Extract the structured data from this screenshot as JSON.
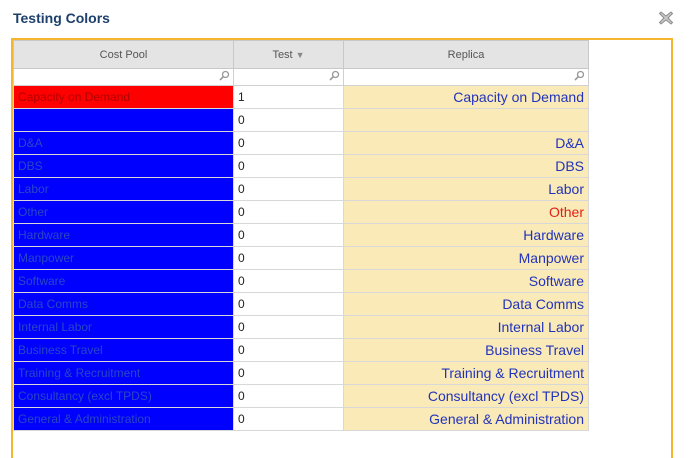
{
  "dialog": {
    "title": "Testing Colors",
    "close_icon": "close-icon"
  },
  "grid": {
    "columns": [
      {
        "label": "Cost Pool",
        "sort": ""
      },
      {
        "label": "Test",
        "sort": "descending"
      },
      {
        "label": "Replica",
        "sort": ""
      }
    ],
    "filters": [
      "",
      "",
      ""
    ],
    "rows": [
      {
        "cost_pool": "Capacity on Demand",
        "test": "1",
        "replica": "Capacity on Demand",
        "pool_bg": "#ff0000",
        "replica_color": "#2233bb"
      },
      {
        "cost_pool": "",
        "test": "0",
        "replica": "",
        "pool_bg": "#0000ff",
        "replica_color": "#2233bb"
      },
      {
        "cost_pool": "D&A",
        "test": "0",
        "replica": "D&A",
        "pool_bg": "#0000ff",
        "replica_color": "#2233bb"
      },
      {
        "cost_pool": "DBS",
        "test": "0",
        "replica": "DBS",
        "pool_bg": "#0000ff",
        "replica_color": "#2233bb"
      },
      {
        "cost_pool": "Labor",
        "test": "0",
        "replica": "Labor",
        "pool_bg": "#0000ff",
        "replica_color": "#2233bb"
      },
      {
        "cost_pool": "Other",
        "test": "0",
        "replica": "Other",
        "pool_bg": "#0000ff",
        "replica_color": "#e0201a"
      },
      {
        "cost_pool": "Hardware",
        "test": "0",
        "replica": "Hardware",
        "pool_bg": "#0000ff",
        "replica_color": "#2233bb"
      },
      {
        "cost_pool": "Manpower",
        "test": "0",
        "replica": "Manpower",
        "pool_bg": "#0000ff",
        "replica_color": "#2233bb"
      },
      {
        "cost_pool": "Software",
        "test": "0",
        "replica": "Software",
        "pool_bg": "#0000ff",
        "replica_color": "#2233bb"
      },
      {
        "cost_pool": "Data Comms",
        "test": "0",
        "replica": "Data Comms",
        "pool_bg": "#0000ff",
        "replica_color": "#2233bb"
      },
      {
        "cost_pool": "Internal Labor",
        "test": "0",
        "replica": "Internal Labor",
        "pool_bg": "#0000ff",
        "replica_color": "#2233bb"
      },
      {
        "cost_pool": "Business Travel",
        "test": "0",
        "replica": "Business Travel",
        "pool_bg": "#0000ff",
        "replica_color": "#2233bb"
      },
      {
        "cost_pool": "Training & Recruitment",
        "test": "0",
        "replica": "Training & Recruitment",
        "pool_bg": "#0000ff",
        "replica_color": "#2233bb"
      },
      {
        "cost_pool": "Consultancy (excl TPDS)",
        "test": "0",
        "replica": "Consultancy (excl TPDS)",
        "pool_bg": "#0000ff",
        "replica_color": "#2233bb"
      },
      {
        "cost_pool": "General & Administration",
        "test": "0",
        "replica": "General & Administration",
        "pool_bg": "#0000ff",
        "replica_color": "#2233bb"
      }
    ]
  }
}
